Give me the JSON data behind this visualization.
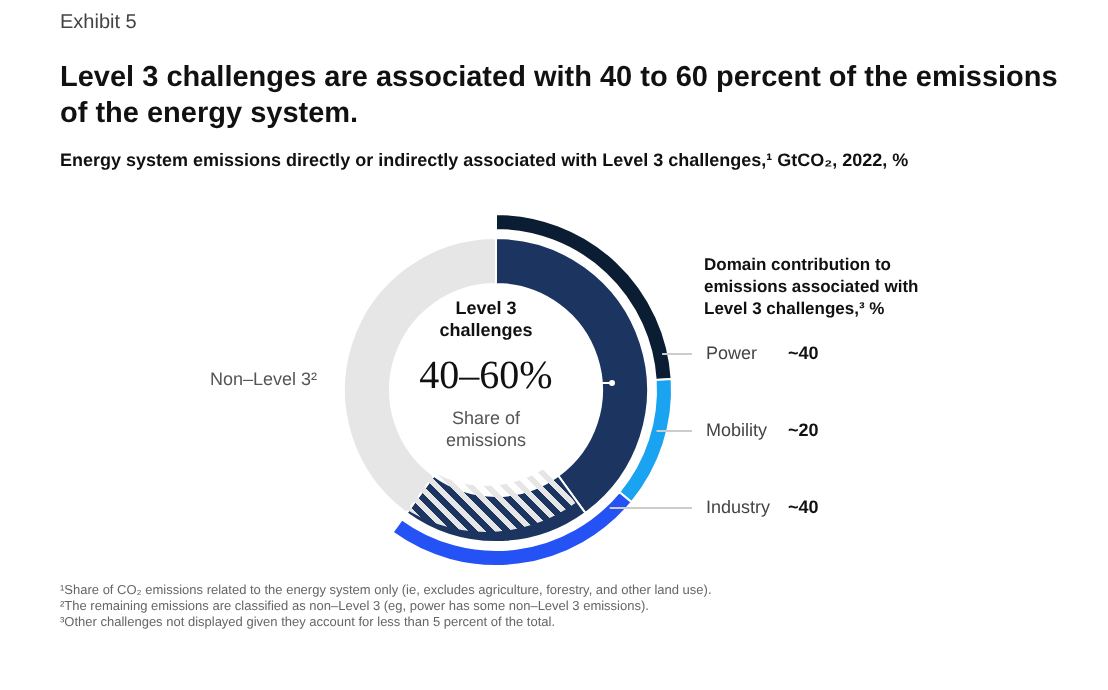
{
  "chart_data": [
    {
      "type": "donut",
      "title": "Level 3 challenges are associated with 40 to 60 percent of the emissions of the energy system.",
      "subtitle": "Energy system emissions directly or indirectly associated with Level 3 challenges,¹ GtCO₂, 2022, %",
      "categories": [
        null,
        null,
        "Non–Level 3²"
      ],
      "values": [
        40,
        20,
        40
      ],
      "colors": [
        "#1b3560",
        "#1b3560",
        "#e6e6e6"
      ],
      "annotations": [
        "Exhibit 5",
        "Level 3 challenges",
        "40–60%",
        "Share of emissions",
        "¹Share of CO₂ emissions related to the energy system only (ie, excludes agriculture, forestry, and other land use).",
        "²The remaining emissions are classified as non–Level 3 (eg, power has some non–Level 3 emissions).",
        "³Other challenges not displayed given they account for less than 5 percent of the total."
      ]
    },
    {
      "type": "donut",
      "legend_title": "Domain contribution to emissions associated with Level 3 challenges,³ %",
      "categories": [
        "Power",
        "Mobility",
        "Industry"
      ],
      "values": [
        40,
        20,
        40
      ],
      "value_labels": [
        "~40",
        "~20",
        "~40"
      ],
      "colors": [
        "#0b1d33",
        "#1aa3f0",
        "#2452f5"
      ]
    }
  ]
}
